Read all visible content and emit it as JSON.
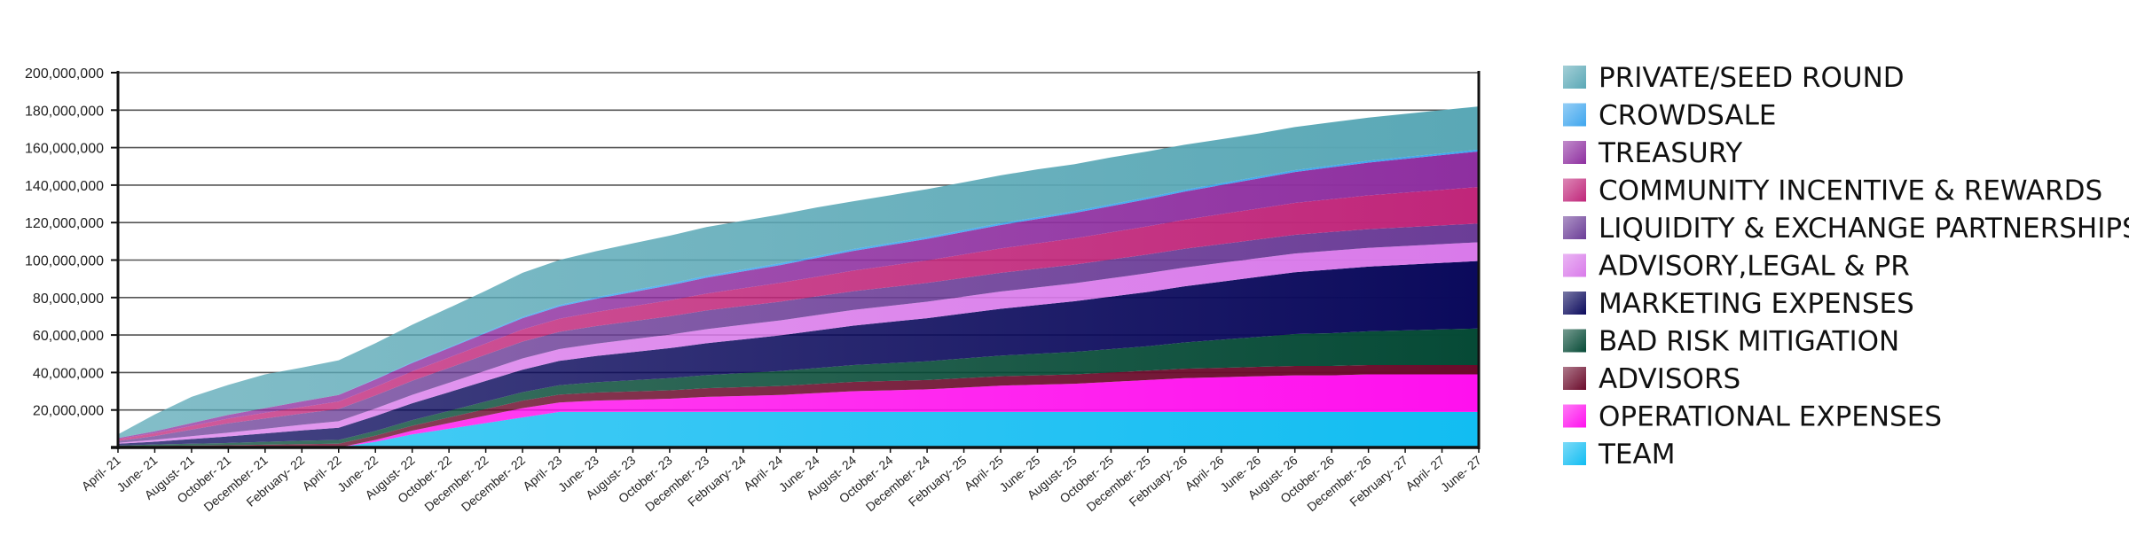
{
  "chart_data": {
    "type": "area",
    "stacked": true,
    "title": "",
    "xlabel": "",
    "ylabel": "",
    "ylim": [
      0,
      200000000
    ],
    "y_ticks": [
      20000000,
      40000000,
      60000000,
      80000000,
      100000000,
      120000000,
      140000000,
      160000000,
      180000000,
      200000000
    ],
    "y_tick_labels": [
      "20,000,000",
      "40,000,000",
      "60,000,000",
      "80,000,000",
      "100,000,000",
      "120,000,000",
      "140,000,000",
      "160,000,000",
      "180,000,000",
      "200,000,000"
    ],
    "grid": true,
    "legend_position": "right",
    "x_labels": [
      "April- 21",
      "June- 21",
      "August- 21",
      "October- 21",
      "December- 21",
      "February- 22",
      "April- 22",
      "June- 22",
      "August- 22",
      "October- 22",
      "December- 22",
      "December- 22",
      "April- 23",
      "June- 23",
      "August- 23",
      "October- 23",
      "December- 23",
      "February- 24",
      "April- 24",
      "June- 24",
      "August- 24",
      "October- 24",
      "December- 24",
      "February- 25",
      "April- 25",
      "June- 25",
      "August- 25",
      "October- 25",
      "December- 25",
      "February- 26",
      "April- 26",
      "June- 26",
      "August- 26",
      "October- 26",
      "December- 26",
      "February- 27",
      "April- 27",
      "June- 27"
    ],
    "series": [
      {
        "name": "TEAM",
        "color": "#12bdf2",
        "values": [
          0,
          0,
          0,
          0,
          0,
          0,
          0,
          3,
          7,
          10,
          13,
          16,
          19,
          19,
          19,
          19,
          19,
          19,
          19,
          19,
          19,
          19,
          19,
          19,
          19,
          19,
          19,
          19,
          19,
          19,
          19,
          19,
          19,
          19,
          19,
          19,
          19,
          19
        ]
      },
      {
        "name": "OPERATIONAL EXPENSES",
        "color": "#ff10ee",
        "values": [
          0,
          0,
          0,
          0,
          0,
          0,
          0,
          1,
          2,
          3,
          4,
          5,
          5,
          6,
          6.5,
          7,
          8,
          8.5,
          9,
          10,
          11,
          11.5,
          12,
          13,
          14,
          14.5,
          15,
          16,
          17,
          18,
          18.5,
          19,
          19.5,
          19.5,
          20,
          20,
          20,
          20
        ]
      },
      {
        "name": "ADVISORS",
        "color": "#6b0b2b",
        "values": [
          0.5,
          0.8,
          1,
          1.2,
          1.5,
          1.8,
          2,
          2.3,
          2.6,
          3,
          3.5,
          4,
          4.2,
          4.3,
          4.4,
          4.5,
          4.6,
          4.7,
          4.8,
          4.9,
          5,
          5,
          5,
          5,
          5,
          5,
          5,
          5,
          5,
          5,
          5,
          5,
          5,
          5,
          5,
          5,
          5,
          5
        ]
      },
      {
        "name": "BAD RISK MITIGATION",
        "color": "#064a36",
        "values": [
          0.5,
          0.8,
          1,
          1.2,
          1.5,
          1.8,
          2,
          2.5,
          3,
          3.5,
          4,
          4.5,
          5,
          5.5,
          6,
          6.5,
          7,
          7.5,
          8,
          8.5,
          9,
          9.5,
          10,
          10.5,
          11,
          11.5,
          12,
          12.5,
          13,
          14,
          15,
          16,
          17,
          17.5,
          18,
          18.5,
          19,
          19.5
        ]
      },
      {
        "name": "MARKETING EXPENSES",
        "color": "#0b0a5c",
        "values": [
          1,
          1.5,
          2.5,
          3.5,
          4.5,
          5.5,
          6.5,
          8,
          9,
          10,
          11,
          12,
          13,
          14,
          15,
          16,
          17,
          18,
          19,
          20,
          21,
          22,
          23,
          24,
          25,
          26,
          27,
          28,
          29,
          30,
          31,
          32,
          33,
          34,
          34.5,
          35,
          35.5,
          36
        ]
      },
      {
        "name": "ADVISORY,LEGAL & PR",
        "color": "#d97aea",
        "values": [
          0.5,
          1,
          1.5,
          2,
          2.5,
          3,
          3.5,
          4,
          4.5,
          5,
          5.5,
          6,
          6.3,
          6.6,
          6.9,
          7.2,
          7.5,
          7.8,
          8,
          8.2,
          8.4,
          8.6,
          8.8,
          9,
          9.2,
          9.4,
          9.6,
          9.8,
          10,
          10,
          10,
          10,
          10,
          10,
          10,
          10,
          10,
          10
        ]
      },
      {
        "name": "LIQUIDITY & EXCHANGE PARTNERSHIPS",
        "color": "#6b3d97",
        "values": [
          1,
          2,
          3.5,
          5,
          5.5,
          6,
          6.5,
          7,
          7.5,
          8,
          8.5,
          9,
          9.2,
          9.4,
          9.6,
          9.8,
          10,
          10,
          10,
          10,
          10,
          10,
          10,
          10,
          10,
          10,
          10,
          10,
          10,
          10,
          10,
          10,
          10,
          10,
          10,
          10,
          10,
          10
        ]
      },
      {
        "name": "COMMUNITY INCENTIVE & REWARDS",
        "color": "#c0267a",
        "values": [
          1,
          1.5,
          2,
          2.5,
          3,
          3.5,
          4,
          4.5,
          5,
          5.5,
          6,
          6.5,
          7,
          7.5,
          8,
          8.5,
          9,
          9.5,
          10,
          10.5,
          11,
          11.5,
          12,
          12.5,
          13,
          13.5,
          14,
          14.5,
          15,
          15.5,
          16,
          16.5,
          17,
          17.5,
          18,
          18.5,
          19,
          19.5
        ]
      },
      {
        "name": "TREASURY",
        "color": "#8e2fa0",
        "values": [
          0.5,
          1,
          1.5,
          2,
          2.5,
          3,
          3.5,
          4,
          4.5,
          5,
          5.5,
          6,
          6.5,
          7,
          7.5,
          8,
          8.5,
          9,
          9.5,
          10,
          10.5,
          11,
          11.5,
          12,
          12.5,
          13,
          13.5,
          14,
          14.5,
          15,
          15.5,
          16,
          16.5,
          17,
          17.5,
          18,
          18.5,
          19
        ]
      },
      {
        "name": "CROWDSALE",
        "color": "#3fa6ee",
        "values": [
          0,
          0,
          0,
          0,
          0,
          0,
          0,
          0.3,
          0.4,
          0.5,
          0.6,
          0.7,
          0.8,
          0.9,
          1,
          1,
          1,
          1,
          1,
          1,
          1,
          1,
          1,
          1,
          1,
          1,
          1,
          1,
          1,
          1,
          1,
          1,
          1,
          1,
          1,
          1,
          1,
          1
        ]
      },
      {
        "name": "PRIVATE/SEED ROUND",
        "color": "#5aa8b6",
        "values": [
          2,
          9,
          14,
          16,
          18,
          18,
          18.5,
          19,
          20,
          21,
          22,
          23.5,
          24,
          24.5,
          25,
          25.5,
          26,
          26,
          26,
          26,
          25.5,
          25.5,
          25.5,
          25.5,
          25.5,
          25.5,
          25,
          25,
          24.5,
          24,
          23.5,
          23,
          23,
          23,
          23,
          23,
          23,
          23
        ]
      }
    ],
    "value_unit_multiplier": 1000000
  },
  "legend_order": [
    "PRIVATE/SEED ROUND",
    "CROWDSALE",
    "TREASURY",
    "COMMUNITY INCENTIVE & REWARDS",
    "LIQUIDITY & EXCHANGE PARTNERSHIPS",
    "ADVISORY,LEGAL & PR",
    "MARKETING EXPENSES",
    "BAD RISK MITIGATION",
    "ADVISORS",
    "OPERATIONAL EXPENSES",
    "TEAM"
  ]
}
